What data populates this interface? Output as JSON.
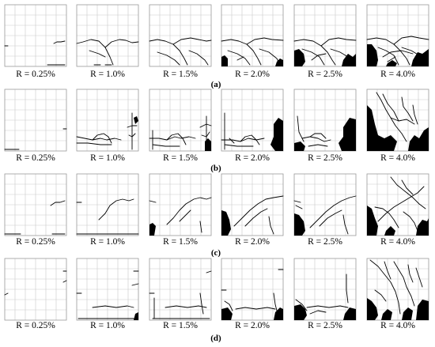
{
  "rows": [
    {
      "label": "(a)",
      "panels": [
        {
          "drift": "R = 0.25%"
        },
        {
          "drift": "R = 1.0%"
        },
        {
          "drift": "R = 1.5%"
        },
        {
          "drift": "R = 2.0%"
        },
        {
          "drift": "R = 2.5%"
        },
        {
          "drift": "R = 4.0%"
        }
      ]
    },
    {
      "label": "(b)",
      "panels": [
        {
          "drift": "R = 0.25%"
        },
        {
          "drift": "R = 1.0%"
        },
        {
          "drift": "R = 1.5%"
        },
        {
          "drift": "R = 2.0%"
        },
        {
          "drift": "R = 2.5%"
        },
        {
          "drift": "R = 4.0%"
        }
      ]
    },
    {
      "label": "(c)",
      "panels": [
        {
          "drift": "R = 0.25%"
        },
        {
          "drift": "R = 1.0%"
        },
        {
          "drift": "R = 1.5%"
        },
        {
          "drift": "R = 2.0%"
        },
        {
          "drift": "R = 2.5%"
        },
        {
          "drift": "R = 4.0%"
        }
      ]
    },
    {
      "label": "(d)",
      "panels": [
        {
          "drift": "R = 0.25%"
        },
        {
          "drift": "R = 1.0%"
        },
        {
          "drift": "R = 1.5%"
        },
        {
          "drift": "R = 2.0%"
        },
        {
          "drift": "R = 2.5%"
        },
        {
          "drift": "R = 4.0%"
        }
      ]
    }
  ]
}
